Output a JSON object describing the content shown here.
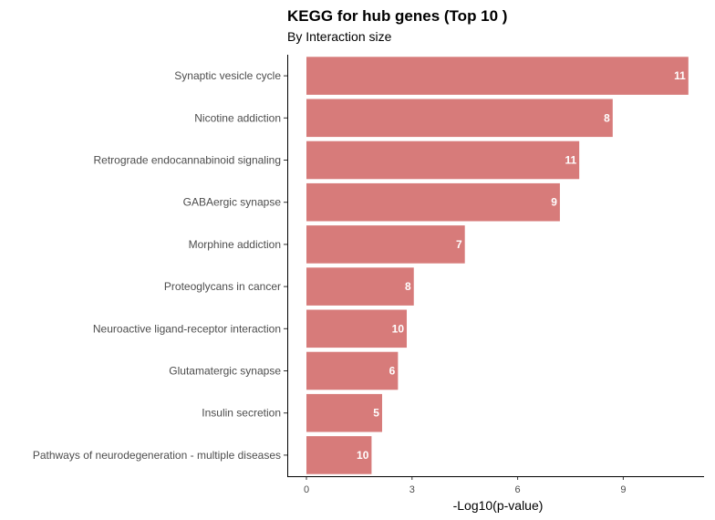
{
  "chart_data": {
    "type": "bar",
    "orientation": "horizontal",
    "title": "KEGG for hub genes (Top 10 )",
    "subtitle": "By Interaction size",
    "xlabel": "-Log10(p-value)",
    "ylabel": "",
    "xlim": [
      0,
      11.0
    ],
    "xticks": [
      0,
      3,
      6,
      9
    ],
    "grid": false,
    "legend": "none",
    "bar_color": "#D77B7A",
    "categories": [
      "Synaptic vesicle cycle",
      "Nicotine addiction",
      "Retrograde endocannabinoid signaling",
      "GABAergic synapse",
      "Morphine addiction",
      "Proteoglycans in cancer",
      "Neuroactive ligand-receptor interaction",
      "Glutamatergic synapse",
      "Insulin secretion",
      "Pathways of neurodegeneration - multiple diseases"
    ],
    "values": [
      10.85,
      8.7,
      7.75,
      7.2,
      4.5,
      3.05,
      2.85,
      2.6,
      2.15,
      1.85
    ],
    "bar_labels": [
      "11",
      "8",
      "11",
      "9",
      "7",
      "8",
      "10",
      "6",
      "5",
      "10"
    ]
  }
}
